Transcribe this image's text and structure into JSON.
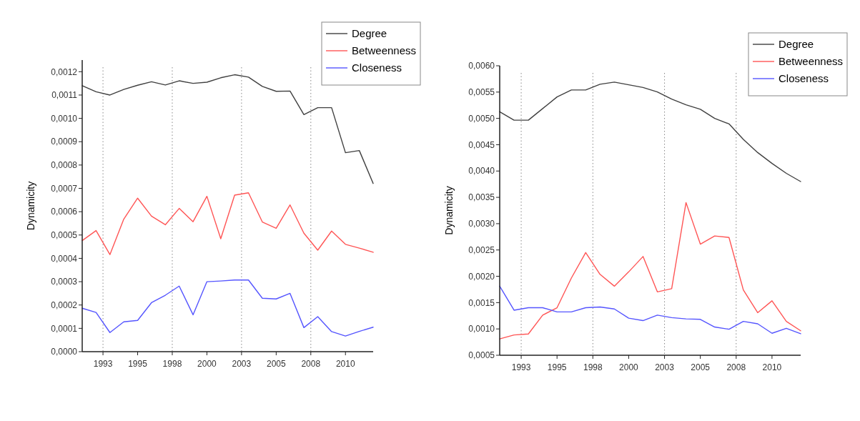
{
  "chart_data": [
    {
      "type": "line",
      "ylabel": "Dynamicity",
      "x": [
        1991,
        1992,
        1993,
        1994,
        1995,
        1996,
        1997,
        1998,
        1999,
        2000,
        2001,
        2002,
        2003,
        2004,
        2005,
        2006,
        2007,
        2008,
        2009,
        2010,
        2011,
        2012
      ],
      "xlim": [
        1991,
        2012
      ],
      "xticks": [
        {
          "value": 1992.5,
          "label": "1993"
        },
        {
          "value": 1995,
          "label": "1995"
        },
        {
          "value": 1997.5,
          "label": "1998"
        },
        {
          "value": 2000,
          "label": "2000"
        },
        {
          "value": 2002.5,
          "label": "2003"
        },
        {
          "value": 2005,
          "label": "2005"
        },
        {
          "value": 2007.5,
          "label": "2008"
        },
        {
          "value": 2010,
          "label": "2010"
        }
      ],
      "ylim": [
        0,
        0.00125
      ],
      "yticks": [
        {
          "value": 0,
          "label": "0,0000"
        },
        {
          "value": 0.0001,
          "label": "0,0001"
        },
        {
          "value": 0.0002,
          "label": "0,0002"
        },
        {
          "value": 0.0003,
          "label": "0,0003"
        },
        {
          "value": 0.0004,
          "label": "0,0004"
        },
        {
          "value": 0.0005,
          "label": "0,0005"
        },
        {
          "value": 0.0006,
          "label": "0,0006"
        },
        {
          "value": 0.0007,
          "label": "0,0007"
        },
        {
          "value": 0.0008,
          "label": "0,0008"
        },
        {
          "value": 0.0009,
          "label": "0,0009"
        },
        {
          "value": 0.001,
          "label": "0,0010"
        },
        {
          "value": 0.0011,
          "label": "0,0011"
        },
        {
          "value": 0.0012,
          "label": "0,0012"
        }
      ],
      "ref_lines": [
        {
          "axis": "x",
          "value": 1992.5,
          "line_style": "dotted"
        },
        {
          "axis": "x",
          "value": 1997.5,
          "line_style": "dotted"
        },
        {
          "axis": "x",
          "value": 2002.5,
          "line_style": "dotted"
        },
        {
          "axis": "x",
          "value": 2007.5,
          "line_style": "dotted"
        }
      ],
      "legend": "top right",
      "grid": false,
      "series": [
        {
          "name": "Degree",
          "color": "#404040",
          "values": [
            0.00114,
            0.001114,
            0.0011,
            0.001124,
            0.001142,
            0.001157,
            0.001143,
            0.001161,
            0.00115,
            0.001155,
            0.001174,
            0.001187,
            0.001177,
            0.001137,
            0.001116,
            0.001117,
            0.001016,
            0.001046,
            0.001046,
            0.000853,
            0.000862,
            0.000721
          ]
        },
        {
          "name": "Betweenness",
          "color": "#ff5555",
          "values": [
            0.000476,
            0.000519,
            0.000416,
            0.000568,
            0.000658,
            0.000581,
            0.000544,
            0.000614,
            0.000557,
            0.000666,
            0.000484,
            0.000671,
            0.000681,
            0.000556,
            0.000529,
            0.000629,
            0.000508,
            0.000435,
            0.000517,
            0.00046,
            0.000444,
            0.000426
          ]
        },
        {
          "name": "Closeness",
          "color": "#5555ff",
          "values": [
            0.000186,
            0.000168,
            8.2e-05,
            0.000128,
            0.000134,
            0.00021,
            0.000242,
            0.000281,
            0.000158,
            0.0003,
            0.000303,
            0.000307,
            0.000307,
            0.000229,
            0.000226,
            0.00025,
            0.000103,
            0.00015,
            8.6e-05,
            6.7e-05,
            8.7e-05,
            0.000105
          ]
        }
      ]
    },
    {
      "type": "line",
      "ylabel": "Dynamicity",
      "x": [
        1991,
        1992,
        1993,
        1994,
        1995,
        1996,
        1997,
        1998,
        1999,
        2000,
        2001,
        2002,
        2003,
        2004,
        2005,
        2006,
        2007,
        2008,
        2009,
        2010,
        2011,
        2012
      ],
      "xlim": [
        1991,
        2012
      ],
      "xticks": [
        {
          "value": 1992.5,
          "label": "1993"
        },
        {
          "value": 1995,
          "label": "1995"
        },
        {
          "value": 1997.5,
          "label": "1998"
        },
        {
          "value": 2000,
          "label": "2000"
        },
        {
          "value": 2002.5,
          "label": "2003"
        },
        {
          "value": 2005,
          "label": "2005"
        },
        {
          "value": 2007.5,
          "label": "2008"
        },
        {
          "value": 2010,
          "label": "2010"
        }
      ],
      "ylim": [
        0.0005,
        0.006
      ],
      "yticks": [
        {
          "value": 0.0005,
          "label": "0,0005"
        },
        {
          "value": 0.001,
          "label": "0,0010"
        },
        {
          "value": 0.0015,
          "label": "0,0015"
        },
        {
          "value": 0.002,
          "label": "0,0020"
        },
        {
          "value": 0.0025,
          "label": "0,0025"
        },
        {
          "value": 0.003,
          "label": "0,0030"
        },
        {
          "value": 0.0035,
          "label": "0,0035"
        },
        {
          "value": 0.004,
          "label": "0,0040"
        },
        {
          "value": 0.0045,
          "label": "0,0045"
        },
        {
          "value": 0.005,
          "label": "0,0050"
        },
        {
          "value": 0.0055,
          "label": "0,0055"
        },
        {
          "value": 0.006,
          "label": "0,0060"
        }
      ],
      "ref_lines": [
        {
          "axis": "x",
          "value": 1992.5,
          "line_style": "dotted"
        },
        {
          "axis": "x",
          "value": 1997.5,
          "line_style": "dotted"
        },
        {
          "axis": "x",
          "value": 2002.5,
          "line_style": "dotted"
        },
        {
          "axis": "x",
          "value": 2007.5,
          "line_style": "dotted"
        }
      ],
      "legend": "top right",
      "grid": false,
      "series": [
        {
          "name": "Degree",
          "color": "#404040",
          "values": [
            0.005126,
            0.004966,
            0.004966,
            0.005187,
            0.005408,
            0.00554,
            0.00554,
            0.005648,
            0.00569,
            0.005639,
            0.005587,
            0.005502,
            0.005366,
            0.005258,
            0.005173,
            0.004999,
            0.004896,
            0.0046,
            0.004351,
            0.004144,
            0.003956,
            0.0038
          ]
        },
        {
          "name": "Betweenness",
          "color": "#ff5555",
          "values": [
            0.00081,
            0.000886,
            0.000904,
            0.001262,
            0.001403,
            0.001967,
            0.002451,
            0.002037,
            0.001812,
            0.002084,
            0.002376,
            0.001704,
            0.001765,
            0.003401,
            0.002611,
            0.002766,
            0.002738,
            0.001741,
            0.001309,
            0.001534,
            0.001144,
            0.000965
          ]
        },
        {
          "name": "Closeness",
          "color": "#5555ff",
          "values": [
            0.001812,
            0.001356,
            0.001403,
            0.001403,
            0.001323,
            0.001323,
            0.001403,
            0.001417,
            0.001379,
            0.001205,
            0.001158,
            0.001262,
            0.001215,
            0.001191,
            0.001182,
            0.001036,
            0.000994,
            0.001144,
            0.001097,
            0.000918,
            0.001012,
            0.000909
          ]
        }
      ]
    }
  ]
}
